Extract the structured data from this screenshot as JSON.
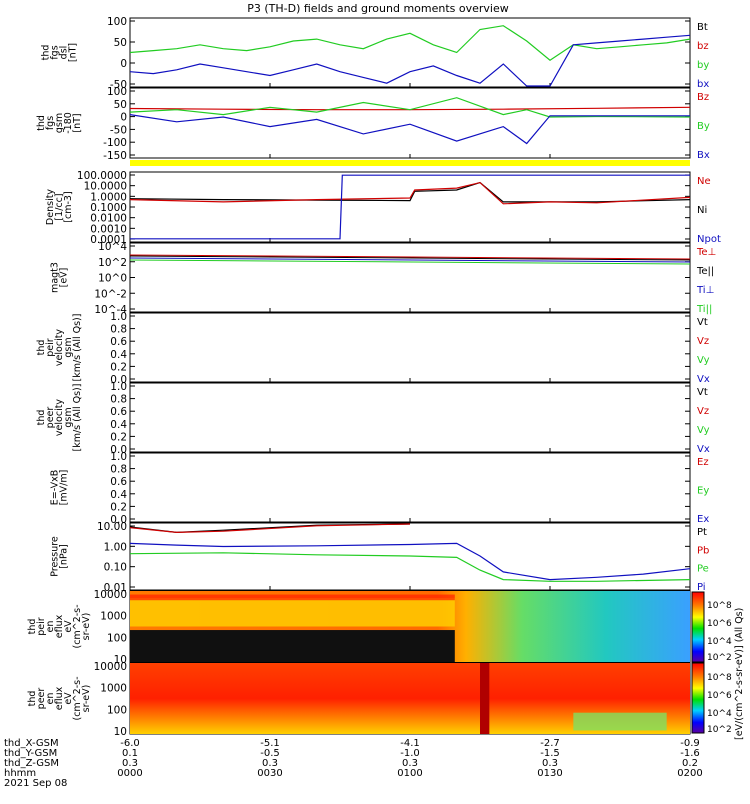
{
  "title": "P3 (TH-D) fields and ground moments overview",
  "colors": {
    "black": "#000000",
    "red": "#d00000",
    "green": "#22cc22",
    "blue": "#1010c0",
    "yellow": "#ffff00"
  },
  "chart_data": [
    {
      "id": "fgs_dsl",
      "type": "line",
      "ylabel": [
        "thd",
        "fgs",
        "dsl",
        "[nT]"
      ],
      "yticks": [
        "100",
        "50",
        "0",
        "-50"
      ],
      "ylim": [
        -70,
        110
      ],
      "legend": [
        {
          "name": "Bt",
          "color": "black"
        },
        {
          "name": "bz",
          "color": "red"
        },
        {
          "name": "by",
          "color": "green"
        },
        {
          "name": "bx",
          "color": "blue"
        }
      ],
      "series": [
        {
          "name": "by",
          "color": "green",
          "x": [
            0,
            5,
            10,
            15,
            20,
            25,
            30,
            35,
            40,
            45,
            50,
            55,
            60,
            65,
            70,
            75,
            80,
            85,
            90,
            95,
            100,
            105,
            110,
            115,
            120
          ],
          "y": [
            20,
            25,
            30,
            40,
            30,
            25,
            35,
            50,
            55,
            40,
            30,
            55,
            70,
            40,
            20,
            80,
            90,
            50,
            0,
            40,
            30,
            35,
            40,
            45,
            55
          ]
        },
        {
          "name": "bx",
          "color": "blue",
          "x": [
            0,
            5,
            10,
            15,
            20,
            25,
            30,
            35,
            40,
            45,
            50,
            55,
            60,
            65,
            70,
            75,
            80,
            85,
            90,
            95,
            100,
            105,
            110,
            115,
            120
          ],
          "y": [
            -30,
            -35,
            -25,
            -10,
            -20,
            -30,
            -40,
            -25,
            -10,
            -30,
            -45,
            -60,
            -30,
            -15,
            -40,
            -60,
            -10,
            -70,
            -80,
            40,
            45,
            50,
            55,
            60,
            65
          ]
        }
      ]
    },
    {
      "id": "fgs_gsm",
      "type": "line",
      "ylabel": [
        "thd",
        "fgs",
        "gsm",
        "-180",
        "[nT]"
      ],
      "yticks": [
        "100",
        "50",
        "0",
        "-50",
        "-100",
        "-150"
      ],
      "ylim": [
        -180,
        110
      ],
      "legend": [
        {
          "name": "Bz",
          "color": "red"
        },
        {
          "name": "By",
          "color": "green"
        },
        {
          "name": "Bx",
          "color": "blue"
        }
      ],
      "series": [
        {
          "name": "Bz",
          "color": "red",
          "x": [
            0,
            20,
            40,
            60,
            80,
            100,
            120
          ],
          "y": [
            25,
            22,
            20,
            20,
            22,
            26,
            30
          ]
        },
        {
          "name": "By",
          "color": "green",
          "x": [
            0,
            10,
            20,
            30,
            40,
            50,
            60,
            70,
            80,
            85,
            90,
            100,
            120
          ],
          "y": [
            10,
            20,
            0,
            30,
            10,
            50,
            20,
            70,
            0,
            20,
            -10,
            -8,
            -10
          ]
        },
        {
          "name": "Bx",
          "color": "blue",
          "x": [
            0,
            10,
            20,
            30,
            40,
            50,
            60,
            70,
            80,
            85,
            90,
            100,
            120
          ],
          "y": [
            0,
            -30,
            -10,
            -50,
            -20,
            -80,
            -40,
            -110,
            -50,
            -120,
            -5,
            -5,
            -5
          ]
        }
      ]
    },
    {
      "id": "density",
      "type": "line",
      "ylabel": [
        "Density",
        "[1/cc]",
        "[cm-3]"
      ],
      "yticks": [
        "100.0000",
        "10.0000",
        "1.0000",
        "0.1000",
        "0.0100",
        "0.0010",
        "0.0001"
      ],
      "ylim_log": [
        -4.3,
        2.3
      ],
      "legend": [
        {
          "name": "Ne",
          "color": "red"
        },
        {
          "name": "Ni",
          "color": "black"
        },
        {
          "name": "Npot",
          "color": "blue"
        }
      ],
      "series": [
        {
          "name": "Ni",
          "color": "black",
          "x": [
            0,
            20,
            40,
            60,
            61,
            70,
            75,
            80,
            90,
            100,
            120
          ],
          "y": [
            0.6,
            0.5,
            0.45,
            0.4,
            3,
            4,
            20,
            0.3,
            0.3,
            0.3,
            0.5
          ]
        },
        {
          "name": "Ne",
          "color": "red",
          "x": [
            0,
            20,
            40,
            60,
            61,
            70,
            75,
            80,
            90,
            100,
            120
          ],
          "y": [
            0.5,
            0.3,
            0.5,
            0.7,
            4,
            6,
            20,
            0.2,
            0.3,
            0.25,
            0.8
          ]
        },
        {
          "name": "Npot",
          "color": "blue",
          "x": [
            0,
            20,
            40,
            45,
            45.5,
            60,
            61,
            80,
            85,
            120
          ],
          "y": [
            0.0001,
            0.0001,
            0.0001,
            0.0001,
            100,
            100,
            100,
            100,
            100,
            100
          ]
        }
      ]
    },
    {
      "id": "temps",
      "type": "line",
      "ylabel": [
        "magt3",
        "[eV]"
      ],
      "yticks": [
        "10^4",
        "10^2",
        "10^0",
        "10^-2",
        "10^-4"
      ],
      "legend": [
        {
          "name": "Te⊥",
          "color": "red"
        },
        {
          "name": "Te||",
          "color": "black"
        },
        {
          "name": "Ti⊥",
          "color": "blue"
        },
        {
          "name": "Ti||",
          "color": "green"
        }
      ]
    },
    {
      "id": "peir_velocity",
      "type": "line",
      "ylabel": [
        "thd",
        "peir",
        "velocity",
        "gsm",
        "[km/s (All Qs)]"
      ],
      "yticks": [
        "1.0",
        "0.8",
        "0.6",
        "0.4",
        "0.2",
        "0.0"
      ],
      "legend": [
        {
          "name": "Vt",
          "color": "black"
        },
        {
          "name": "Vz",
          "color": "red"
        },
        {
          "name": "Vy",
          "color": "green"
        },
        {
          "name": "Vx",
          "color": "blue"
        }
      ]
    },
    {
      "id": "peer_velocity",
      "type": "line",
      "ylabel": [
        "thd",
        "peer",
        "velocity",
        "gsm",
        "[km/s (All Qs)]"
      ],
      "yticks": [
        "1.0",
        "0.8",
        "0.6",
        "0.4",
        "0.2",
        "0.0"
      ],
      "legend": [
        {
          "name": "Vt",
          "color": "black"
        },
        {
          "name": "Vz",
          "color": "red"
        },
        {
          "name": "Vy",
          "color": "green"
        },
        {
          "name": "Vx",
          "color": "blue"
        }
      ]
    },
    {
      "id": "efield",
      "type": "line",
      "ylabel": [
        "E=-VxB",
        "[mV/m]"
      ],
      "yticks": [
        "1.0",
        "0.8",
        "0.6",
        "0.4",
        "0.2",
        "0.0"
      ],
      "legend": [
        {
          "name": "Ez",
          "color": "red"
        },
        {
          "name": "Ey",
          "color": "green"
        },
        {
          "name": "Ex",
          "color": "blue"
        }
      ]
    },
    {
      "id": "pressure",
      "type": "line",
      "ylabel": [
        "Pressure",
        "[nPa]"
      ],
      "yticks": [
        "10.00",
        "1.00",
        "0.10",
        "0.01"
      ],
      "ylim_log": [
        -2.4,
        1.3
      ],
      "legend": [
        {
          "name": "Pt",
          "color": "black"
        },
        {
          "name": "Pb",
          "color": "red"
        },
        {
          "name": "Pe",
          "color": "green"
        },
        {
          "name": "Pi",
          "color": "blue"
        }
      ],
      "series": [
        {
          "name": "Pt",
          "color": "black",
          "x": [
            0,
            10,
            20,
            40,
            60
          ],
          "y": [
            12,
            6,
            8,
            15,
            25
          ]
        },
        {
          "name": "Pb",
          "color": "red",
          "x": [
            0,
            10,
            20,
            40,
            60
          ],
          "y": [
            11,
            6,
            7,
            14,
            24
          ]
        },
        {
          "name": "Pi",
          "color": "blue",
          "x": [
            0,
            10,
            20,
            40,
            60,
            70,
            75,
            80,
            90,
            100,
            110,
            120
          ],
          "y": [
            1.5,
            1.2,
            1.0,
            1.1,
            1.3,
            1.5,
            0.3,
            0.04,
            0.015,
            0.02,
            0.03,
            0.06
          ]
        },
        {
          "name": "Pe",
          "color": "green",
          "x": [
            0,
            20,
            40,
            60,
            70,
            75,
            80,
            90,
            100,
            120
          ],
          "y": [
            0.4,
            0.45,
            0.35,
            0.3,
            0.25,
            0.05,
            0.015,
            0.012,
            0.012,
            0.015
          ]
        }
      ]
    },
    {
      "id": "peir_spectrogram",
      "type": "heatmap",
      "ylabel": [
        "thd",
        "peir",
        "en",
        "eflux",
        "eV",
        "(cm^2-s-",
        "sr-eV)"
      ],
      "yticks": [
        "10000",
        "1000",
        "100",
        "10"
      ]
    },
    {
      "id": "peer_spectrogram",
      "type": "heatmap",
      "ylabel": [
        "thd",
        "peer",
        "en",
        "eflux",
        "eV",
        "(cm^2-s-",
        "sr-eV)"
      ],
      "yticks": [
        "10000",
        "1000",
        "100",
        "10"
      ]
    }
  ],
  "colorbar": {
    "label": "[eV/(cm^2-s-sr-eV)] (All Qs)",
    "ticks_upper": [
      "10^8",
      "10^6",
      "10^4",
      "10^2"
    ],
    "ticks_lower": [
      "10^8",
      "10^6",
      "10^4",
      "10^2"
    ]
  },
  "bottom_axis": {
    "rows": [
      {
        "label": "thd_X-GSM",
        "values": [
          "-6.0",
          "-5.1",
          "-4.1",
          "-2.7",
          "-0.9"
        ]
      },
      {
        "label": "thd_Y-GSM",
        "values": [
          "0.1",
          "-0.5",
          "-1.0",
          "-1.5",
          "-1.6"
        ]
      },
      {
        "label": "thd_Z-GSM",
        "values": [
          "0.3",
          "0.3",
          "0.3",
          "0.3",
          "0.2"
        ]
      },
      {
        "label": "hhmm",
        "values": [
          "0000",
          "0030",
          "0100",
          "0130",
          "0200"
        ]
      }
    ],
    "date": "2021 Sep 08"
  }
}
